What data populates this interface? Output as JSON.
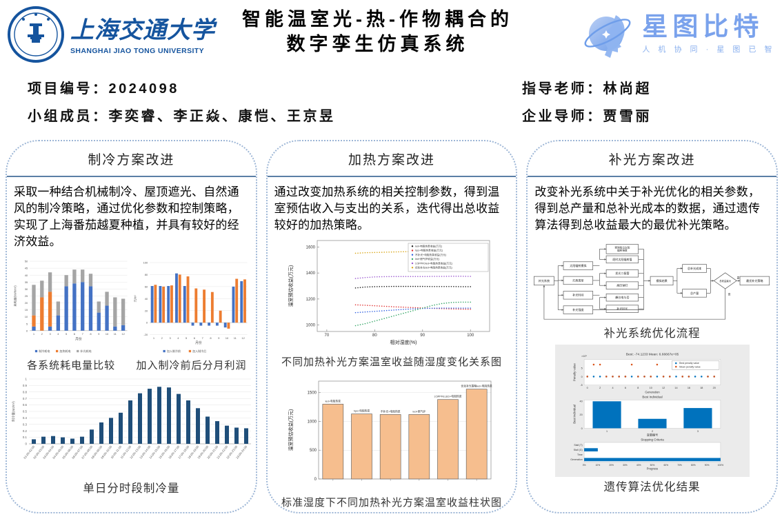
{
  "header": {
    "university_cn": "上海交通大学",
    "university_en": "SHANGHAI JIAO TONG UNIVERSITY",
    "title_line1": "智能温室光-热-作物耦合的",
    "title_line2": "数字孪生仿真系统",
    "brand_name": "星图比特",
    "brand_tagline": "人 机 协 同 · 星 图 已 智"
  },
  "info": {
    "project_id": "项目编号：2024098",
    "members": "小组成员：李奕睿、李正焱、康恺、王京昱",
    "advisor": "指导老师：林尚超",
    "mentor": "企业导师：贾雪丽"
  },
  "columns": [
    {
      "title": "制冷方案改进",
      "paragraph": "采取一种结合机械制冷、屋顶遮光、自然通风的制冷策略，通过优化参数和控制策略，实现了上海番茄越夏种植，并具有较好的经济效益。"
    },
    {
      "title": "加热方案改进",
      "paragraph": "通过改变加热系统的相关控制参数，得到温室预估收入与支出的关系，迭代得出总收益较好的加热策略。"
    },
    {
      "title": "补光方案改进",
      "paragraph": "改变补光系统中关于补光优化的相关参数，得到总产量和总补光成本的数据，通过遗传算法得到总收益最大的最优补光策略。"
    }
  ],
  "chart_data": [
    {
      "id": "power-consumption",
      "type": "stacked-bar",
      "title": "各系统耗电量比较",
      "categories": [
        1,
        2,
        3,
        4,
        5,
        6,
        7,
        8,
        9,
        10,
        11,
        12
      ],
      "series": [
        {
          "name": "制冷耗电",
          "color": "#4472C4",
          "values": [
            3,
            0,
            3,
            11,
            32,
            34,
            35,
            32,
            13,
            18,
            3,
            4
          ]
        },
        {
          "name": "加热耗电",
          "color": "#ED7D31",
          "values": [
            8,
            24,
            25,
            0,
            0,
            0,
            0,
            0,
            0,
            0,
            0,
            0
          ]
        },
        {
          "name": "补光耗电",
          "color": "#A5A5A5",
          "values": [
            22,
            12,
            14,
            10,
            8,
            10,
            9,
            9,
            8,
            10,
            21,
            19
          ]
        }
      ],
      "xlabel": "月份",
      "ylabel": "耗电量(kWh/m²)",
      "ylim": [
        0,
        50
      ],
      "ytick": 5
    },
    {
      "id": "monthly-profit",
      "type": "grouped-bar",
      "title": "加入制冷前后分月利润",
      "categories": [
        1,
        2,
        3,
        4,
        5,
        6,
        7,
        8,
        9,
        10,
        11,
        12
      ],
      "series": [
        {
          "name": "加入制冷前",
          "color": "#4472C4",
          "values": [
            61,
            61,
            61,
            82,
            61,
            -5,
            -5,
            -5,
            -5,
            -8,
            60,
            69
          ]
        },
        {
          "name": "加入制冷后",
          "color": "#ED7D31",
          "values": [
            63,
            60,
            62,
            80,
            77,
            57,
            55,
            51,
            20,
            -10,
            73,
            72
          ]
        }
      ],
      "xlabel": "月份",
      "ylabel": "元/m²",
      "ylim": [
        -20,
        100
      ],
      "ytick": 20
    },
    {
      "id": "daily-cooling",
      "type": "bar",
      "title": "单日分时段制冷量",
      "categories": [
        "01:00-02:00",
        "02:00-03:00",
        "03:00-04:00",
        "04:00-05:00",
        "05:00-06:00",
        "06:00-07:00",
        "07:00-08:00",
        "08:00-09:00",
        "09:00-10:00",
        "10:00-11:00",
        "11:00-12:00",
        "12:00-13:00",
        "13:00-14:00",
        "14:00-15:00",
        "15:00-16:00",
        "16:00-17:00",
        "17:00-18:00",
        "18:00-19:00",
        "19:00-20:00",
        "20:00-21:00",
        "21:00-22:00",
        "22:00-23:00",
        "23:00-24:00"
      ],
      "values": [
        0.07,
        0.11,
        0.12,
        0.1,
        0.08,
        0.11,
        0.22,
        0.33,
        0.4,
        0.48,
        0.67,
        0.78,
        0.85,
        0.88,
        0.87,
        0.77,
        0.67,
        0.55,
        0.42,
        0.35,
        0.28,
        0.25,
        0.24
      ],
      "color": "#1F4E79",
      "ylabel": "制冷量(MJ/m²)",
      "ylim": [
        0,
        1
      ],
      "ytick": 0.1
    },
    {
      "id": "humidity-revenue",
      "type": "line",
      "title": "不同加热补光方案温室收益随湿度变化关系图",
      "x": [
        76,
        78,
        80,
        82,
        84,
        86,
        88,
        90,
        92,
        94,
        96,
        98,
        100
      ],
      "series": [
        {
          "name": "led+电阻热泵收益(万元)",
          "color": "#1a1a1a",
          "values": [
            1285,
            1292,
            1295,
            1296,
            1297,
            1297,
            1297,
            1297,
            1296,
            1296,
            1296,
            1295,
            1295
          ]
        },
        {
          "name": "hps+电阻热泵收益(万元)",
          "color": "#E03131",
          "values": [
            1155,
            1152,
            1148,
            1144,
            1140,
            1137,
            1134,
            1131,
            1128,
            1126,
            1124,
            1122,
            1121
          ]
        },
        {
          "name": "不补光+电阻热泵收益(万元)",
          "color": "#2E5FE0",
          "values": [
            1095,
            1100,
            1105,
            1110,
            1115,
            1120,
            1124,
            1127,
            1129,
            1130,
            1130,
            1130,
            1130
          ]
        },
        {
          "name": "led+燃气炉收益(万元)",
          "color": "#2FA463",
          "values": [
            995,
            1010,
            1030,
            1050,
            1070,
            1090,
            1110,
            1130,
            1150,
            1165,
            1173,
            1176,
            1176
          ]
        },
        {
          "name": "3.5PPFDled+电阻热泵收益(万元)",
          "color": "#9B59D0",
          "values": [
            1358,
            1365,
            1370,
            1372,
            1373,
            1373,
            1373,
            1373,
            1374,
            1374,
            1375,
            1375,
            1374
          ]
        },
        {
          "name": "优化补光led+电阻热泵收益(万元)",
          "color": "#D9A514",
          "values": [
            1552,
            1556,
            1558,
            1560,
            1562,
            1564,
            1566,
            1568,
            1566,
            1563,
            1560,
            1558,
            1557
          ]
        }
      ],
      "xlabel": "相对湿度(%)",
      "ylabel": "温室预估收益(万元)",
      "xlim": [
        68,
        104
      ],
      "xticks": [
        70,
        80,
        90,
        100
      ],
      "ylim": [
        950,
        1650
      ],
      "yticks": [
        1000,
        1200,
        1400,
        1600
      ],
      "legend_position": "top-right"
    },
    {
      "id": "scheme-revenue",
      "type": "bar-labeled",
      "title": "标准湿度下不同加热补光方案温室收益柱状图",
      "categories": [
        "led+电阻热泵",
        "hps+电阻热泵",
        "不补光+电阻热泵",
        "led+燃气炉",
        "3.5PPFELED+电阻热泵",
        "优化补光策略led+电阻热泵"
      ],
      "values": [
        1300,
        1130,
        1120,
        1120,
        1380,
        1560
      ],
      "bar_color": "#F6BE8E",
      "bar_stroke": "#555555",
      "ylabel": "温室预估收益(万元)",
      "ylim": [
        0,
        1700
      ],
      "yticks": [
        0,
        500,
        1000,
        1500
      ]
    },
    {
      "id": "lighting-flowchart",
      "type": "flowchart",
      "caption": "补光系统优化流程",
      "nodes": {
        "start": "补光系统",
        "level1": [
          "太阳辐射模拟",
          "灯具类型",
          "补光时间",
          "补光强度"
        ],
        "level2": [
          "预测每日太阳辐射强度",
          "逐时太阳辐射值",
          "发光二极管",
          "高压钠灯",
          "峰谷电与否",
          "补光时长"
        ],
        "sim": "模拟结果",
        "outputs": [
          "总补光成本",
          "总产量"
        ],
        "decision": "总收益最大",
        "end": "最优补光策略",
        "yes": "是",
        "no": "否"
      }
    },
    {
      "id": "ga-results",
      "type": "matlab-ga",
      "caption": "遗传算法优化结果",
      "subplots": [
        {
          "type": "scatter",
          "title": "Best: -74.1233 Mean: 6.66667e+05",
          "scale_label": "×10⁵",
          "xlabel": "Generation",
          "ylabel": "Penalty value",
          "legend": [
            {
              "name": "Best penalty value",
              "color": "#0072BD"
            },
            {
              "name": "Mean penalty value",
              "color": "#D95319"
            }
          ],
          "generations": [
            0,
            1,
            2,
            3,
            4,
            5,
            6,
            7,
            8,
            9,
            10,
            11,
            12,
            13,
            14,
            15,
            16,
            17,
            18,
            19,
            20
          ],
          "best_values_e5": [
            0,
            0,
            0,
            0,
            0,
            0,
            0,
            0,
            0,
            0,
            0,
            0,
            0,
            0,
            0,
            0,
            0,
            0,
            0,
            0,
            0
          ],
          "mean_values_e5": [
            0,
            7,
            7,
            0,
            0,
            0,
            0,
            7,
            0,
            0,
            0,
            7,
            0,
            0,
            7,
            0,
            0,
            7,
            7,
            0,
            0
          ],
          "yticks": [
            -5,
            0,
            5
          ],
          "ylim": [
            -5,
            10
          ],
          "xticks": [
            0,
            2,
            4,
            6,
            8,
            10,
            12,
            14,
            16,
            18,
            20
          ]
        },
        {
          "type": "bar",
          "title": "Best Individual",
          "xlabel": "变量编号",
          "ylabel": "Best individual",
          "categories": [
            1,
            2,
            3
          ],
          "values": [
            40,
            14,
            30
          ],
          "yticks": [
            0,
            20,
            40
          ],
          "color": "#0072BD"
        },
        {
          "type": "hbar",
          "title": "Stopping Criteria",
          "xlabel": "Progress",
          "categories": [
            "Stall (T)",
            "Stall (G)",
            "Time",
            "Generation"
          ],
          "values_pct": [
            0,
            10,
            0,
            100
          ],
          "xticks": [
            "0%",
            "10%",
            "20%",
            "30%",
            "40%",
            "50%",
            "60%",
            "70%",
            "80%",
            "90%",
            "100%"
          ],
          "color": "#0072BD"
        }
      ]
    }
  ]
}
